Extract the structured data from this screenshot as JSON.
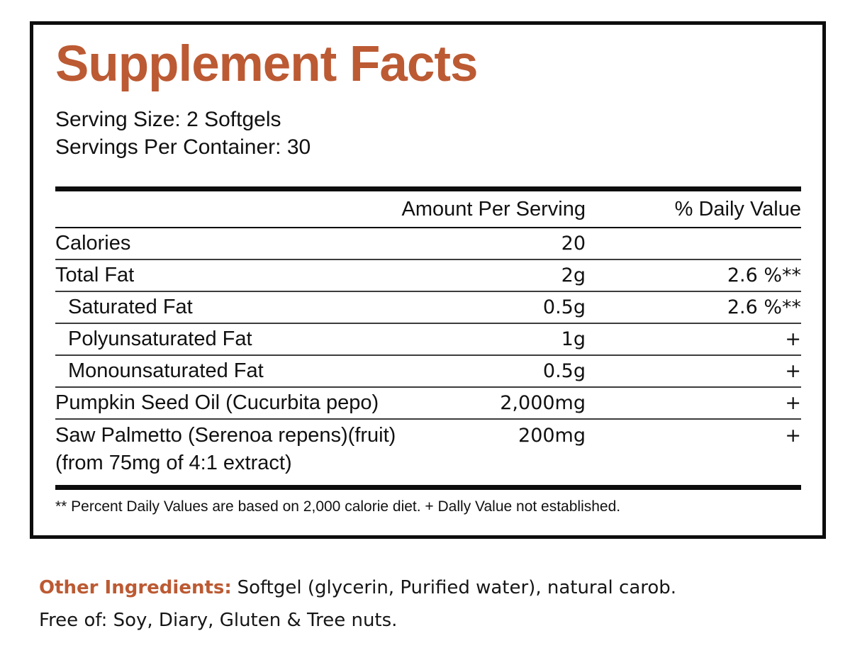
{
  "accent_color": "#bc5a33",
  "label": {
    "title": "Supplement Facts",
    "serving_size": "Serving Size: 2 Softgels",
    "servings_per_container": "Servings Per Container: 30",
    "columns": {
      "amount": "Amount Per Serving",
      "daily_value": "% Daily Value"
    },
    "rows": [
      {
        "name": "Calories",
        "amount": "20",
        "dv": ""
      },
      {
        "name": "Total Fat",
        "amount": "2g",
        "dv": "2.6 %**"
      },
      {
        "name": "Saturated Fat",
        "amount": "0.5g",
        "dv": "2.6 %**"
      },
      {
        "name": "Polyunsaturated Fat",
        "amount": "1g",
        "dv": "+"
      },
      {
        "name": "Monounsaturated Fat",
        "amount": "0.5g",
        "dv": "+"
      },
      {
        "name": "Pumpkin Seed Oil (Cucurbita pepo)",
        "amount": "2,000mg",
        "dv": "+"
      },
      {
        "name": "Saw Palmetto (Serenoa repens)(fruit)",
        "amount": "200mg",
        "dv": "+",
        "name2": "(from 75mg of 4:1 extract)"
      }
    ],
    "footnote": "** Percent Daily Values are based on 2,000 calorie diet. + Dally Value not established."
  },
  "other_ingredients": {
    "heading": "Other Ingredients:",
    "text": "Softgel (glycerin, Purified water), natural carob.",
    "free_of": "Free of: Soy, Diary, Gluten & Tree nuts."
  }
}
